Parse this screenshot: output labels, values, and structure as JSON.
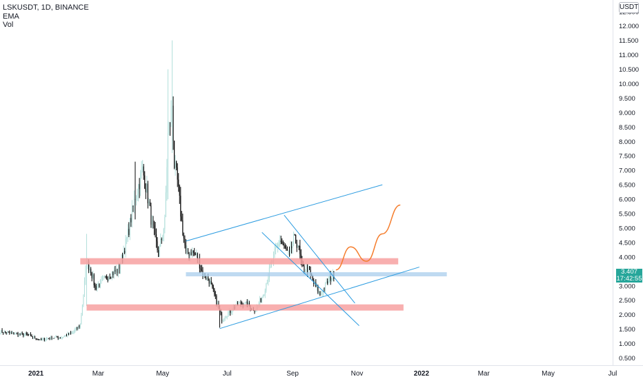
{
  "header": {
    "symbol_line": "LSKUSDT, 1D, BINANCE",
    "indicator_ema": "EMA",
    "indicator_vol": "Vol",
    "currency": "USDT"
  },
  "last_price": {
    "value": "3.407",
    "countdown": "17:42:55",
    "color": "#26a69a"
  },
  "colors": {
    "up_candle": "#b2dfdb",
    "down_candle": "#000000",
    "zone": "#f7a1a1",
    "level_line": "#a9cdec",
    "trend_line": "#2a9be0",
    "projection": "#f57c2b",
    "axis_text": "#131722",
    "grid_border": "#e0e3eb"
  },
  "chart_data": {
    "type": "candlestick",
    "symbol": "LSKUSDT",
    "interval": "1D",
    "exchange": "BINANCE",
    "y_axis": {
      "ylim": [
        0.25,
        12.9
      ],
      "ticks": [
        "0.500",
        "1.000",
        "1.500",
        "2.000",
        "2.500",
        "3.000",
        "3.500",
        "4.000",
        "4.500",
        "5.000",
        "5.500",
        "6.000",
        "6.500",
        "7.000",
        "7.500",
        "8.000",
        "8.500",
        "9.000",
        "9.500",
        "10.000",
        "10.500",
        "11.000",
        "11.500",
        "12.000",
        "12.500"
      ]
    },
    "x_axis": {
      "range": [
        "2020-11-28",
        "2022-07-01"
      ],
      "ticks": [
        {
          "label": "2021",
          "date": "2021-01-01",
          "bold": true
        },
        {
          "label": "Mar",
          "date": "2021-03-01",
          "bold": false
        },
        {
          "label": "May",
          "date": "2021-05-01",
          "bold": false
        },
        {
          "label": "Jul",
          "date": "2021-07-01",
          "bold": false
        },
        {
          "label": "Sep",
          "date": "2021-09-01",
          "bold": false
        },
        {
          "label": "Nov",
          "date": "2021-11-01",
          "bold": false
        },
        {
          "label": "2022",
          "date": "2022-01-01",
          "bold": true
        },
        {
          "label": "Mar",
          "date": "2022-03-01",
          "bold": false
        },
        {
          "label": "May",
          "date": "2022-05-01",
          "bold": false
        },
        {
          "label": "Jul",
          "date": "2022-07-01",
          "bold": false
        }
      ]
    },
    "price_path": [
      [
        "2020-11-28",
        1.42
      ],
      [
        "2020-12-10",
        1.35
      ],
      [
        "2020-12-25",
        1.3
      ],
      [
        "2021-01-05",
        1.12
      ],
      [
        "2021-01-15",
        1.2
      ],
      [
        "2021-01-25",
        1.22
      ],
      [
        "2021-02-05",
        1.38
      ],
      [
        "2021-02-12",
        1.65
      ],
      [
        "2021-02-18",
        3.8
      ],
      [
        "2021-02-22",
        3.55
      ],
      [
        "2021-02-26",
        2.95
      ],
      [
        "2021-03-05",
        3.15
      ],
      [
        "2021-03-12",
        3.4
      ],
      [
        "2021-03-20",
        3.55
      ],
      [
        "2021-03-28",
        4.6
      ],
      [
        "2021-04-05",
        6.1
      ],
      [
        "2021-04-12",
        7.0
      ],
      [
        "2021-04-16",
        6.3
      ],
      [
        "2021-04-21",
        5.1
      ],
      [
        "2021-04-27",
        4.1
      ],
      [
        "2021-05-03",
        5.2
      ],
      [
        "2021-05-06",
        8.2
      ],
      [
        "2021-05-10",
        9.3
      ],
      [
        "2021-05-12",
        7.2
      ],
      [
        "2021-05-15",
        6.6
      ],
      [
        "2021-05-19",
        5.2
      ],
      [
        "2021-05-23",
        4.1
      ],
      [
        "2021-05-28",
        4.2
      ],
      [
        "2021-06-03",
        4.0
      ],
      [
        "2021-06-08",
        3.4
      ],
      [
        "2021-06-14",
        3.2
      ],
      [
        "2021-06-20",
        2.55
      ],
      [
        "2021-06-26",
        1.85
      ],
      [
        "2021-07-02",
        2.05
      ],
      [
        "2021-07-12",
        2.4
      ],
      [
        "2021-07-20",
        2.35
      ],
      [
        "2021-07-28",
        2.15
      ],
      [
        "2021-08-04",
        2.7
      ],
      [
        "2021-08-10",
        3.5
      ],
      [
        "2021-08-15",
        4.1
      ],
      [
        "2021-08-20",
        4.6
      ],
      [
        "2021-08-24",
        4.3
      ],
      [
        "2021-08-29",
        4.05
      ],
      [
        "2021-09-02",
        4.6
      ],
      [
        "2021-09-06",
        4.45
      ],
      [
        "2021-09-10",
        3.6
      ],
      [
        "2021-09-16",
        3.55
      ],
      [
        "2021-09-22",
        3.0
      ],
      [
        "2021-09-27",
        2.7
      ],
      [
        "2021-10-01",
        2.95
      ],
      [
        "2021-10-06",
        3.25
      ],
      [
        "2021-10-10",
        3.4
      ]
    ],
    "spikes": [
      [
        "2021-05-10",
        11.5,
        7.6
      ],
      [
        "2021-05-06",
        10.5,
        6.0
      ],
      [
        "2021-04-05",
        7.3,
        5.3
      ],
      [
        "2021-02-18",
        4.8,
        2.3
      ],
      [
        "2021-06-24",
        2.0,
        1.55
      ]
    ],
    "drawings": {
      "horizontal_zones": [
        {
          "y": 3.85,
          "x_start": "2021-02-12",
          "x_end": "2021-12-10"
        },
        {
          "y": 2.25,
          "x_start": "2021-02-18",
          "x_end": "2021-12-15"
        }
      ],
      "horizontal_levels": [
        {
          "y": 3.4,
          "x_start": "2021-05-23",
          "x_end": "2022-01-25"
        }
      ],
      "trend_lines": [
        {
          "from": [
            "2021-05-23",
            4.55
          ],
          "to": [
            "2021-11-25",
            6.5
          ]
        },
        {
          "from": [
            "2021-06-24",
            1.52
          ],
          "to": [
            "2021-12-30",
            3.65
          ]
        },
        {
          "from": [
            "2021-08-03",
            4.85
          ],
          "to": [
            "2021-11-03",
            1.62
          ]
        },
        {
          "from": [
            "2021-08-24",
            5.45
          ],
          "to": [
            "2021-10-30",
            2.4
          ]
        }
      ],
      "projection": [
        [
          "2021-10-12",
          3.55
        ],
        [
          "2021-10-26",
          4.35
        ],
        [
          "2021-11-10",
          3.85
        ],
        [
          "2021-11-25",
          4.8
        ],
        [
          "2021-12-12",
          5.8
        ]
      ]
    }
  }
}
